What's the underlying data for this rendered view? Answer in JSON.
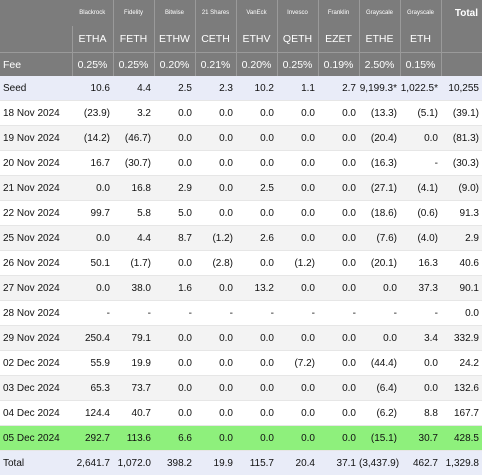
{
  "header": {
    "issuers": [
      "Blackrock",
      "Fidelity",
      "Bitwise",
      "21 Shares",
      "VanEck",
      "Invesco",
      "Franklin",
      "Grayscale",
      "Grayscale"
    ],
    "total_label": "Total",
    "tickers": [
      "ETHA",
      "FETH",
      "ETHW",
      "CETH",
      "ETHV",
      "QETH",
      "EZET",
      "ETHE",
      "ETH"
    ],
    "fee_label": "Fee",
    "fees": [
      "0.25%",
      "0.25%",
      "0.20%",
      "0.21%",
      "0.20%",
      "0.25%",
      "0.19%",
      "2.50%",
      "0.15%"
    ]
  },
  "rows": [
    {
      "date": "Seed",
      "cells": [
        "10.6",
        "4.4",
        "2.5",
        "2.3",
        "10.2",
        "1.1",
        "2.7",
        "9,199.3*",
        "1,022.5*",
        "10,255"
      ]
    },
    {
      "date": "18 Nov 2024",
      "cells": [
        "(23.9)",
        "3.2",
        "0.0",
        "0.0",
        "0.0",
        "0.0",
        "0.0",
        "(13.3)",
        "(5.1)",
        "(39.1)"
      ]
    },
    {
      "date": "19 Nov 2024",
      "cells": [
        "(14.2)",
        "(46.7)",
        "0.0",
        "0.0",
        "0.0",
        "0.0",
        "0.0",
        "(20.4)",
        "0.0",
        "(81.3)"
      ]
    },
    {
      "date": "20 Nov 2024",
      "cells": [
        "16.7",
        "(30.7)",
        "0.0",
        "0.0",
        "0.0",
        "0.0",
        "0.0",
        "(16.3)",
        "-",
        "(30.3)"
      ]
    },
    {
      "date": "21 Nov 2024",
      "cells": [
        "0.0",
        "16.8",
        "2.9",
        "0.0",
        "2.5",
        "0.0",
        "0.0",
        "(27.1)",
        "(4.1)",
        "(9.0)"
      ]
    },
    {
      "date": "22 Nov 2024",
      "cells": [
        "99.7",
        "5.8",
        "5.0",
        "0.0",
        "0.0",
        "0.0",
        "0.0",
        "(18.6)",
        "(0.6)",
        "91.3"
      ]
    },
    {
      "date": "25 Nov 2024",
      "cells": [
        "0.0",
        "4.4",
        "8.7",
        "(1.2)",
        "2.6",
        "0.0",
        "0.0",
        "(7.6)",
        "(4.0)",
        "2.9"
      ]
    },
    {
      "date": "26 Nov 2024",
      "cells": [
        "50.1",
        "(1.7)",
        "0.0",
        "(2.8)",
        "0.0",
        "(1.2)",
        "0.0",
        "(20.1)",
        "16.3",
        "40.6"
      ]
    },
    {
      "date": "27 Nov 2024",
      "cells": [
        "0.0",
        "38.0",
        "1.6",
        "0.0",
        "13.2",
        "0.0",
        "0.0",
        "0.0",
        "37.3",
        "90.1"
      ]
    },
    {
      "date": "28 Nov 2024",
      "cells": [
        "-",
        "-",
        "-",
        "-",
        "-",
        "-",
        "-",
        "-",
        "-",
        "0.0"
      ]
    },
    {
      "date": "29 Nov 2024",
      "cells": [
        "250.4",
        "79.1",
        "0.0",
        "0.0",
        "0.0",
        "0.0",
        "0.0",
        "0.0",
        "3.4",
        "332.9"
      ]
    },
    {
      "date": "02 Dec 2024",
      "cells": [
        "55.9",
        "19.9",
        "0.0",
        "0.0",
        "0.0",
        "(7.2)",
        "0.0",
        "(44.4)",
        "0.0",
        "24.2"
      ]
    },
    {
      "date": "03 Dec 2024",
      "cells": [
        "65.3",
        "73.7",
        "0.0",
        "0.0",
        "0.0",
        "0.0",
        "0.0",
        "(6.4)",
        "0.0",
        "132.6"
      ]
    },
    {
      "date": "04 Dec 2024",
      "cells": [
        "124.4",
        "40.7",
        "0.0",
        "0.0",
        "0.0",
        "0.0",
        "0.0",
        "(6.2)",
        "8.8",
        "167.7"
      ]
    },
    {
      "date": "05 Dec 2024",
      "cells": [
        "292.7",
        "113.6",
        "6.6",
        "0.0",
        "0.0",
        "0.0",
        "0.0",
        "(15.1)",
        "30.7",
        "428.5"
      ]
    },
    {
      "date": "Total",
      "cells": [
        "2,641.7",
        "1,072.0",
        "398.2",
        "19.9",
        "115.7",
        "20.4",
        "37.1",
        "(3,437.9)",
        "462.7",
        "1,329.8"
      ]
    }
  ],
  "colors": {
    "header_bg": "#7c7c7c",
    "negative": "#e01b1b",
    "highlight": "#8ef07c",
    "seed_total_bg": "#e9ecf8"
  }
}
